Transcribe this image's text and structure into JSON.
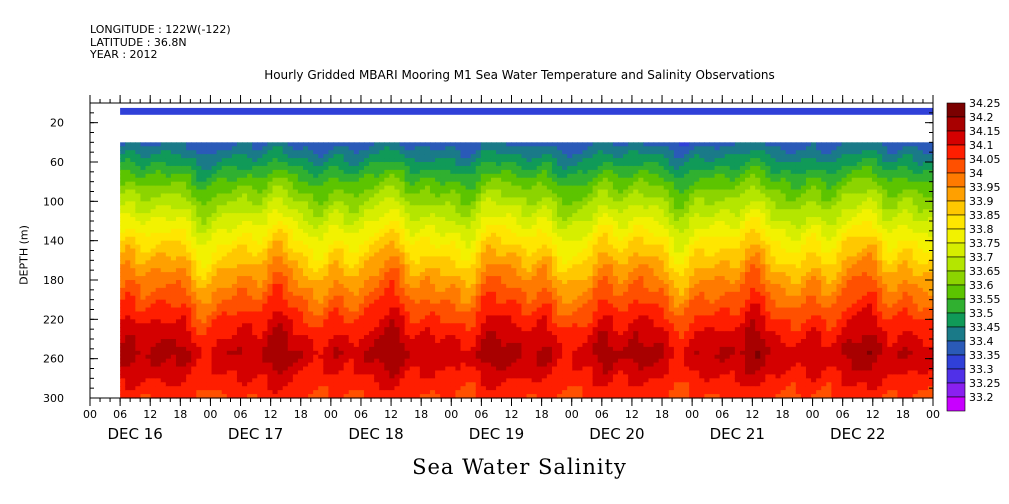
{
  "header": {
    "longitude": "LONGITUDE : 122W(-122)",
    "latitude": "LATITUDE : 36.8N",
    "year": "YEAR : 2012"
  },
  "chart_data": {
    "type": "heatmap",
    "title": "Hourly Gridded MBARI Mooring M1 Sea Water Temperature and Salinity Observations",
    "ylabel": "DEPTH (m)",
    "xlabel": "Sea Water Salinity",
    "ylim": [
      300,
      0
    ],
    "y_ticks": [
      20,
      60,
      100,
      140,
      180,
      220,
      260,
      300
    ],
    "x_hour_ticks": [
      "00",
      "06",
      "12",
      "18",
      "00",
      "06",
      "12",
      "18",
      "00",
      "06",
      "12",
      "18",
      "00",
      "06",
      "12",
      "18",
      "00",
      "06",
      "12",
      "18",
      "00",
      "06",
      "12",
      "18",
      "00",
      "06",
      "12",
      "18",
      "00"
    ],
    "x_day_labels": [
      "DEC 16",
      "DEC 17",
      "DEC 18",
      "DEC 19",
      "DEC 20",
      "DEC 21",
      "DEC 22"
    ],
    "data_start": "DEC 16 06:00",
    "data_end": "DEC 23 00:00",
    "surface_band": {
      "depth_range": [
        5,
        12
      ],
      "value": 33.35
    },
    "missing_depth_range": [
      12,
      40
    ],
    "depth_profile": [
      {
        "depth": 40,
        "value": 33.43
      },
      {
        "depth": 60,
        "value": 33.52
      },
      {
        "depth": 80,
        "value": 33.62
      },
      {
        "depth": 100,
        "value": 33.7
      },
      {
        "depth": 120,
        "value": 33.78
      },
      {
        "depth": 140,
        "value": 33.86
      },
      {
        "depth": 160,
        "value": 33.93
      },
      {
        "depth": 180,
        "value": 34.0
      },
      {
        "depth": 200,
        "value": 34.06
      },
      {
        "depth": 220,
        "value": 34.12
      },
      {
        "depth": 240,
        "value": 34.17
      },
      {
        "depth": 255,
        "value": 34.2
      },
      {
        "depth": 270,
        "value": 34.17
      },
      {
        "depth": 300,
        "value": 34.1
      }
    ],
    "colorbar": {
      "labels": [
        "34.25",
        "34.2",
        "34.15",
        "34.1",
        "34.05",
        "34",
        "33.95",
        "33.9",
        "33.85",
        "33.8",
        "33.75",
        "33.7",
        "33.65",
        "33.6",
        "33.55",
        "33.5",
        "33.45",
        "33.4",
        "33.35",
        "33.3",
        "33.25",
        "33.2"
      ],
      "levels": [
        34.25,
        34.2,
        34.15,
        34.1,
        34.05,
        34,
        33.95,
        33.9,
        33.85,
        33.8,
        33.75,
        33.7,
        33.65,
        33.6,
        33.55,
        33.5,
        33.45,
        33.4,
        33.35,
        33.3,
        33.25,
        33.2
      ],
      "colors": [
        "#7a0000",
        "#a80000",
        "#d40000",
        "#ff1e00",
        "#ff5000",
        "#ff7a00",
        "#ffa000",
        "#ffc800",
        "#ffe600",
        "#f2f200",
        "#d6ee00",
        "#b4e600",
        "#8cd400",
        "#5cc400",
        "#30b030",
        "#109a58",
        "#1a7a88",
        "#2a5ab8",
        "#3040d8",
        "#5030e8",
        "#8a20f0",
        "#c800ff"
      ]
    }
  }
}
